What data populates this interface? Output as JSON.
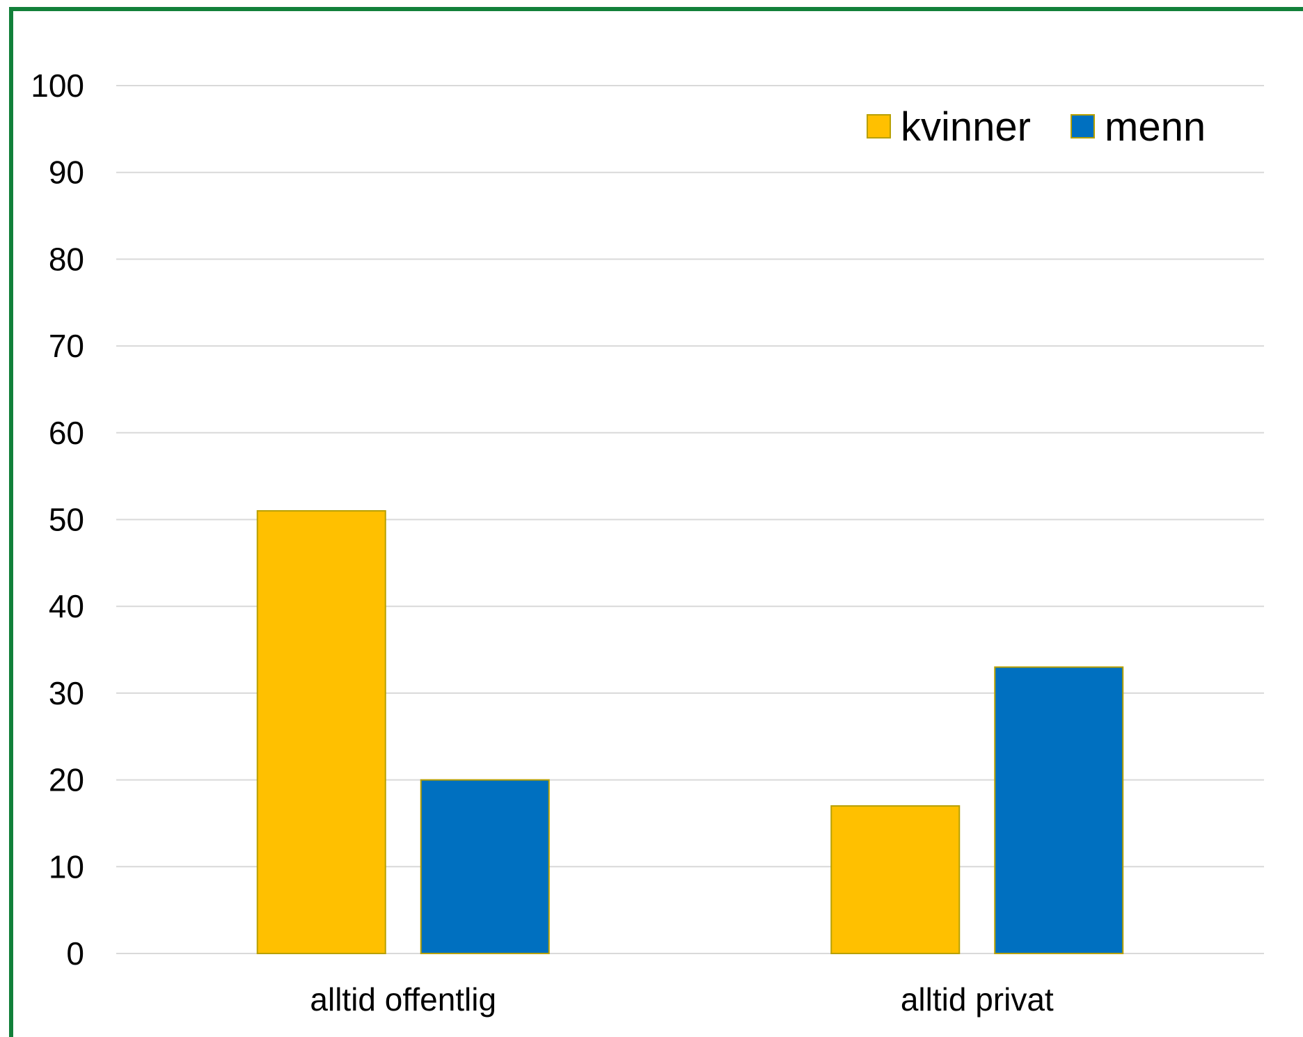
{
  "chart_data": {
    "type": "bar",
    "categories": [
      "alltid offentlig",
      "alltid privat"
    ],
    "series": [
      {
        "name": "kvinner",
        "values": [
          51,
          17
        ],
        "color": "#FFC000"
      },
      {
        "name": "menn",
        "values": [
          20,
          33
        ],
        "color": "#0070C0"
      }
    ],
    "ylim": [
      0,
      100
    ],
    "yticks": [
      0,
      10,
      20,
      30,
      40,
      50,
      60,
      70,
      80,
      90,
      100
    ],
    "grid": true,
    "legend_position": "top-right",
    "frame_color": "#12803A",
    "bar_edge_color": "#B8A000"
  }
}
